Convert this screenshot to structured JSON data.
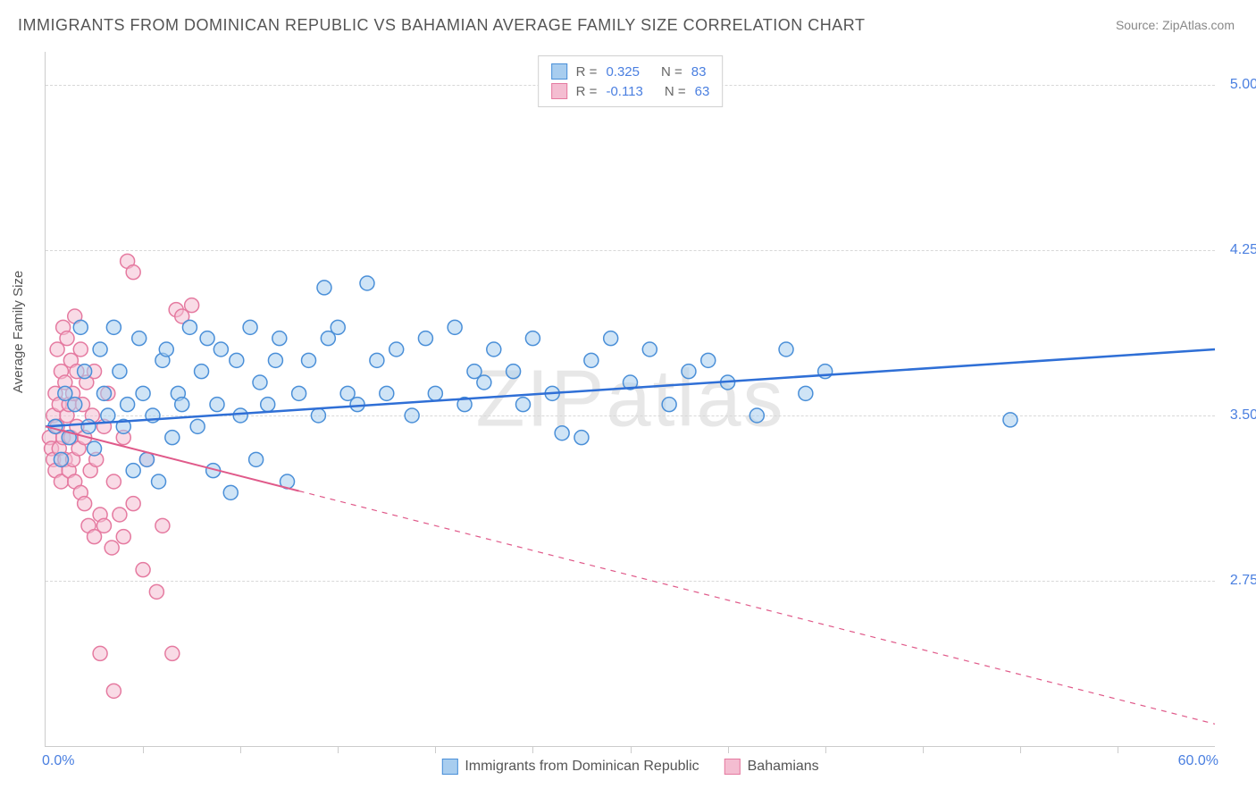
{
  "title": "IMMIGRANTS FROM DOMINICAN REPUBLIC VS BAHAMIAN AVERAGE FAMILY SIZE CORRELATION CHART",
  "source": "Source: ZipAtlas.com",
  "watermark": "ZIPatlas",
  "ylabel": "Average Family Size",
  "chart": {
    "type": "scatter-with-regression",
    "background_color": "#ffffff",
    "grid_color": "#d8d8d8",
    "axis_color": "#cccccc",
    "xlim": [
      0.0,
      60.0
    ],
    "ylim": [
      2.0,
      5.15
    ],
    "xaxis_min_label": "0.0%",
    "xaxis_max_label": "60.0%",
    "ytick_values": [
      2.75,
      3.5,
      4.25,
      5.0
    ],
    "ytick_labels": [
      "2.75",
      "3.50",
      "4.25",
      "5.00"
    ],
    "xtick_positions": [
      5,
      10,
      15,
      20,
      25,
      30,
      35,
      40,
      45,
      50,
      55
    ],
    "ytick_label_color": "#4a7fe0",
    "xaxis_label_color": "#4a7fe0",
    "marker_radius": 8,
    "marker_opacity": 0.55,
    "series": [
      {
        "name": "Immigrants from Dominican Republic",
        "short": "dominican",
        "color_stroke": "#4a8fd8",
        "color_fill": "#a8cdef",
        "R": "0.325",
        "N": "83",
        "regression": {
          "x1": 0,
          "y1": 3.45,
          "x2": 60,
          "y2": 3.8,
          "line_color": "#2f6fd6",
          "line_width": 2.5,
          "solid_until_x": 60
        },
        "points": [
          [
            0.5,
            3.45
          ],
          [
            0.8,
            3.3
          ],
          [
            1.0,
            3.6
          ],
          [
            1.2,
            3.4
          ],
          [
            1.5,
            3.55
          ],
          [
            1.8,
            3.9
          ],
          [
            2.0,
            3.7
          ],
          [
            2.2,
            3.45
          ],
          [
            2.5,
            3.35
          ],
          [
            2.8,
            3.8
          ],
          [
            3.0,
            3.6
          ],
          [
            3.2,
            3.5
          ],
          [
            3.5,
            3.9
          ],
          [
            3.8,
            3.7
          ],
          [
            4.0,
            3.45
          ],
          [
            4.2,
            3.55
          ],
          [
            4.5,
            3.25
          ],
          [
            4.8,
            3.85
          ],
          [
            5.0,
            3.6
          ],
          [
            5.2,
            3.3
          ],
          [
            5.5,
            3.5
          ],
          [
            5.8,
            3.2
          ],
          [
            6.0,
            3.75
          ],
          [
            6.2,
            3.8
          ],
          [
            6.5,
            3.4
          ],
          [
            6.8,
            3.6
          ],
          [
            7.0,
            3.55
          ],
          [
            7.4,
            3.9
          ],
          [
            7.8,
            3.45
          ],
          [
            8.0,
            3.7
          ],
          [
            8.3,
            3.85
          ],
          [
            8.6,
            3.25
          ],
          [
            8.8,
            3.55
          ],
          [
            9.0,
            3.8
          ],
          [
            9.5,
            3.15
          ],
          [
            9.8,
            3.75
          ],
          [
            10.0,
            3.5
          ],
          [
            10.5,
            3.9
          ],
          [
            10.8,
            3.3
          ],
          [
            11.0,
            3.65
          ],
          [
            11.4,
            3.55
          ],
          [
            11.8,
            3.75
          ],
          [
            12.0,
            3.85
          ],
          [
            12.4,
            3.2
          ],
          [
            13.0,
            3.6
          ],
          [
            13.5,
            3.75
          ],
          [
            14.0,
            3.5
          ],
          [
            14.3,
            4.08
          ],
          [
            14.5,
            3.85
          ],
          [
            15.0,
            3.9
          ],
          [
            15.5,
            3.6
          ],
          [
            16.0,
            3.55
          ],
          [
            16.5,
            4.1
          ],
          [
            17.0,
            3.75
          ],
          [
            17.5,
            3.6
          ],
          [
            18.0,
            3.8
          ],
          [
            18.8,
            3.5
          ],
          [
            19.5,
            3.85
          ],
          [
            20.0,
            3.6
          ],
          [
            21.0,
            3.9
          ],
          [
            21.5,
            3.55
          ],
          [
            22.0,
            3.7
          ],
          [
            22.5,
            3.65
          ],
          [
            23.0,
            3.8
          ],
          [
            24.0,
            3.7
          ],
          [
            24.5,
            3.55
          ],
          [
            25.0,
            3.85
          ],
          [
            26.0,
            3.6
          ],
          [
            26.5,
            3.42
          ],
          [
            27.5,
            3.4
          ],
          [
            28.0,
            3.75
          ],
          [
            29.0,
            3.85
          ],
          [
            30.0,
            3.65
          ],
          [
            31.0,
            3.8
          ],
          [
            32.0,
            3.55
          ],
          [
            33.0,
            3.7
          ],
          [
            34.0,
            3.75
          ],
          [
            35.0,
            3.65
          ],
          [
            36.5,
            3.5
          ],
          [
            38.0,
            3.8
          ],
          [
            39.0,
            3.6
          ],
          [
            40.0,
            3.7
          ],
          [
            49.5,
            3.48
          ]
        ]
      },
      {
        "name": "Bahamians",
        "short": "bahamians",
        "color_stroke": "#e57aa0",
        "color_fill": "#f4bdd1",
        "R": "-0.113",
        "N": "63",
        "regression": {
          "x1": 0,
          "y1": 3.45,
          "x2": 60,
          "y2": 2.1,
          "line_color": "#e05a8a",
          "line_width": 2,
          "solid_until_x": 13
        },
        "points": [
          [
            0.2,
            3.4
          ],
          [
            0.3,
            3.35
          ],
          [
            0.4,
            3.5
          ],
          [
            0.4,
            3.3
          ],
          [
            0.5,
            3.6
          ],
          [
            0.5,
            3.25
          ],
          [
            0.6,
            3.45
          ],
          [
            0.6,
            3.8
          ],
          [
            0.7,
            3.35
          ],
          [
            0.7,
            3.55
          ],
          [
            0.8,
            3.7
          ],
          [
            0.8,
            3.2
          ],
          [
            0.9,
            3.4
          ],
          [
            0.9,
            3.9
          ],
          [
            1.0,
            3.3
          ],
          [
            1.0,
            3.65
          ],
          [
            1.1,
            3.5
          ],
          [
            1.1,
            3.85
          ],
          [
            1.2,
            3.25
          ],
          [
            1.2,
            3.55
          ],
          [
            1.3,
            3.4
          ],
          [
            1.3,
            3.75
          ],
          [
            1.4,
            3.3
          ],
          [
            1.4,
            3.6
          ],
          [
            1.5,
            3.95
          ],
          [
            1.5,
            3.2
          ],
          [
            1.6,
            3.45
          ],
          [
            1.6,
            3.7
          ],
          [
            1.7,
            3.35
          ],
          [
            1.8,
            3.8
          ],
          [
            1.8,
            3.15
          ],
          [
            1.9,
            3.55
          ],
          [
            2.0,
            3.4
          ],
          [
            2.0,
            3.1
          ],
          [
            2.1,
            3.65
          ],
          [
            2.2,
            3.0
          ],
          [
            2.3,
            3.25
          ],
          [
            2.4,
            3.5
          ],
          [
            2.5,
            2.95
          ],
          [
            2.5,
            3.7
          ],
          [
            2.6,
            3.3
          ],
          [
            2.8,
            3.05
          ],
          [
            2.8,
            2.42
          ],
          [
            3.0,
            3.45
          ],
          [
            3.0,
            3.0
          ],
          [
            3.2,
            3.6
          ],
          [
            3.4,
            2.9
          ],
          [
            3.5,
            3.2
          ],
          [
            3.5,
            2.25
          ],
          [
            3.8,
            3.05
          ],
          [
            4.0,
            3.4
          ],
          [
            4.0,
            2.95
          ],
          [
            4.2,
            4.2
          ],
          [
            4.5,
            3.1
          ],
          [
            4.5,
            4.15
          ],
          [
            5.0,
            2.8
          ],
          [
            5.2,
            3.3
          ],
          [
            5.7,
            2.7
          ],
          [
            6.0,
            3.0
          ],
          [
            6.7,
            3.98
          ],
          [
            7.0,
            3.95
          ],
          [
            7.5,
            4.0
          ],
          [
            6.5,
            2.42
          ]
        ]
      }
    ]
  },
  "legend_bottom": [
    {
      "swatch_fill": "#a8cdef",
      "swatch_stroke": "#4a8fd8",
      "label": "Immigrants from Dominican Republic"
    },
    {
      "swatch_fill": "#f4bdd1",
      "swatch_stroke": "#e57aa0",
      "label": "Bahamians"
    }
  ]
}
